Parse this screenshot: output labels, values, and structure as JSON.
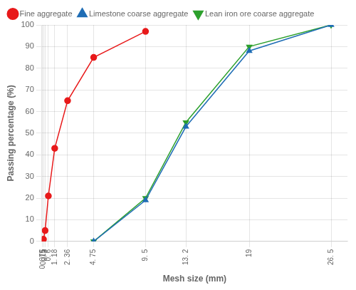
{
  "chart_data": {
    "type": "line",
    "x_label": "Mesh size (mm)",
    "y_label": "Passing percentage (%)",
    "xlim": [
      0,
      28
    ],
    "xticks": [
      {
        "value": 0.075,
        "label": "0. 075"
      },
      {
        "value": 0.15,
        "label": "0. 15"
      },
      {
        "value": 0.3,
        "label": "0. 3"
      },
      {
        "value": 0.6,
        "label": "0. 6"
      },
      {
        "value": 1.18,
        "label": "1. 18"
      },
      {
        "value": 2.36,
        "label": "2. 36"
      },
      {
        "value": 4.75,
        "label": "4. 75"
      },
      {
        "value": 9.5,
        "label": "9. 5"
      },
      {
        "value": 13.2,
        "label": "13. 2"
      },
      19,
      {
        "value": 26.5,
        "label": "26. 5"
      }
    ],
    "ylim": [
      0,
      100
    ],
    "yticks": [
      0,
      10,
      20,
      30,
      40,
      50,
      60,
      70,
      80,
      90,
      100
    ],
    "grid": true,
    "legend": "upper left",
    "series": [
      {
        "name": "Fine aggregate",
        "color": "#e8191a",
        "marker": "circle",
        "x": [
          0.075,
          0.15,
          0.3,
          0.6,
          1.18,
          2.36,
          4.75,
          9.5
        ],
        "values": [
          0,
          1,
          5,
          21,
          43,
          65,
          85,
          97
        ]
      },
      {
        "name": "Limestone coarse aggregate",
        "color": "#1f6db5",
        "marker": "triangle_up",
        "x": [
          4.75,
          9.5,
          13.2,
          19,
          26.5
        ],
        "values": [
          0,
          19,
          53,
          88,
          100
        ]
      },
      {
        "name": "Lean iron ore coarse aggregate",
        "color": "#2ca02c",
        "marker": "triangle_down",
        "x": [
          4.75,
          9.5,
          13.2,
          19,
          26.5
        ],
        "values": [
          0,
          20,
          55,
          90,
          100
        ]
      }
    ]
  }
}
